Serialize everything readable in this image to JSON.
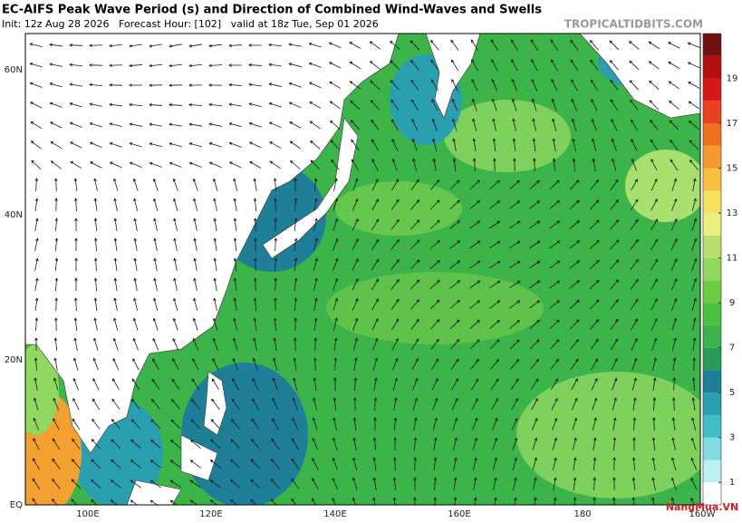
{
  "header": {
    "title": "EC-AIFS Peak Wave Period (s) and Direction of Combined Wind-Waves and Swells",
    "subtitle": "Init: 12z Aug 28 2026   Forecast Hour: [102]   valid at 18z Tue, Sep 01 2026",
    "watermark": "TROPICALTIDBITS.COM"
  },
  "map": {
    "lat_labels": [
      "60N",
      "40N",
      "20N",
      "EQ"
    ],
    "lon_labels": [
      "100E",
      "120E",
      "140E",
      "160E",
      "180",
      "160W"
    ]
  },
  "colorbar": {
    "lim": [
      0,
      21
    ],
    "ticks": [
      1,
      3,
      5,
      7,
      9,
      11,
      13,
      15,
      17,
      19
    ],
    "colors": [
      "#ffffff",
      "#bff0f0",
      "#7fdde0",
      "#40bfc8",
      "#2a9fb0",
      "#1f7f98",
      "#2a9a5a",
      "#3cb44a",
      "#4cc040",
      "#6ccc44",
      "#90d860",
      "#b8e070",
      "#e8f080",
      "#f8e060",
      "#f8c040",
      "#f49a30",
      "#f07020",
      "#e84020",
      "#d81818",
      "#b01010",
      "#701010"
    ]
  },
  "logo": "NangMua.VN"
}
